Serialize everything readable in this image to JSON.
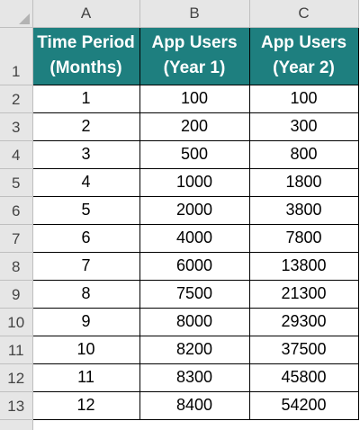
{
  "columns": [
    "A",
    "B",
    "C"
  ],
  "header": {
    "col_a": [
      "Time Period",
      "(Months)"
    ],
    "col_b": [
      "App Users",
      "(Year 1)"
    ],
    "col_c": [
      "App Users",
      "(Year 2)"
    ]
  },
  "row_numbers": [
    "1",
    "2",
    "3",
    "4",
    "5",
    "6",
    "7",
    "8",
    "9",
    "10",
    "11",
    "12",
    "13"
  ],
  "rows": [
    [
      "1",
      "100",
      "100"
    ],
    [
      "2",
      "200",
      "300"
    ],
    [
      "3",
      "500",
      "800"
    ],
    [
      "4",
      "1000",
      "1800"
    ],
    [
      "5",
      "2000",
      "3800"
    ],
    [
      "6",
      "4000",
      "7800"
    ],
    [
      "7",
      "6000",
      "13800"
    ],
    [
      "8",
      "7500",
      "21300"
    ],
    [
      "9",
      "8000",
      "29300"
    ],
    [
      "10",
      "8200",
      "37500"
    ],
    [
      "11",
      "8300",
      "45800"
    ],
    [
      "12",
      "8400",
      "54200"
    ]
  ],
  "colors": {
    "header_bg": "#1e7f7f",
    "header_text": "#ffffff",
    "grid_header_bg": "#e6e6e6"
  }
}
